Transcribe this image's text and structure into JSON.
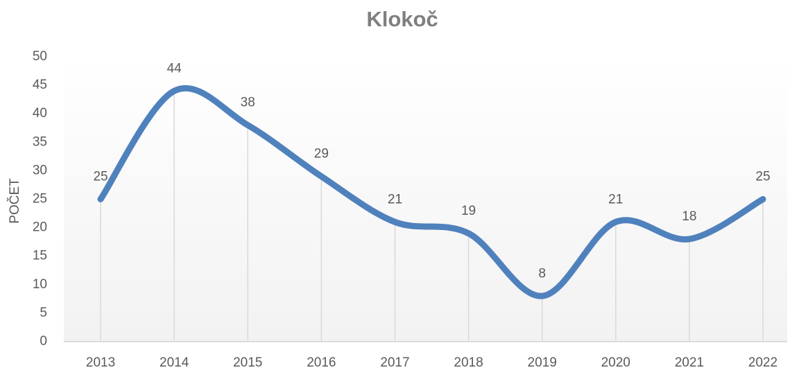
{
  "chart_data": {
    "type": "line",
    "title": "Klokoč",
    "y_label": "POČET",
    "categories": [
      "2013",
      "2014",
      "2015",
      "2016",
      "2017",
      "2018",
      "2019",
      "2020",
      "2021",
      "2022"
    ],
    "values": [
      25,
      44,
      38,
      29,
      21,
      19,
      8,
      21,
      18,
      25
    ],
    "color": "#4f81bd",
    "smooth": true,
    "drop_lines": true,
    "data_labels": true,
    "ylim": [
      0,
      50
    ],
    "yticks": [
      0,
      5,
      10,
      15,
      20,
      25,
      30,
      35,
      40,
      45,
      50
    ],
    "grid": false
  }
}
